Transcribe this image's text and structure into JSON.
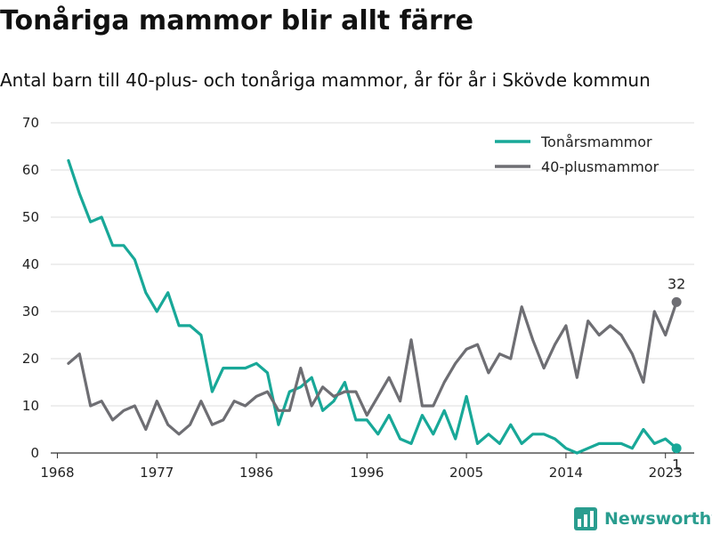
{
  "title": "Tonåriga mammor blir allt färre",
  "subtitle": "Antal barn till 40-plus- och tonåriga mammor, år för år i Skövde kommun",
  "brand": {
    "name": "Newsworthy"
  },
  "colors": {
    "teen": "#18a898",
    "plus40": "#6e6e73",
    "grid": "#dddddd",
    "axis": "#333333"
  },
  "chart_data": {
    "type": "line",
    "x_start": 1969,
    "x_end": 2024,
    "xticks": [
      1968,
      1977,
      1986,
      1996,
      2005,
      2014,
      2023
    ],
    "yticks": [
      0,
      10,
      20,
      30,
      40,
      50,
      60,
      70
    ],
    "ylim": [
      0,
      70
    ],
    "xlim": [
      1967.4,
      2025.6
    ],
    "grid": true,
    "legend_position": "top-right",
    "series": [
      {
        "name": "Tonårsmammor",
        "color": "#18a898",
        "values": [
          62,
          55,
          49,
          50,
          44,
          44,
          41,
          34,
          30,
          34,
          27,
          27,
          25,
          13,
          18,
          18,
          18,
          19,
          17,
          6,
          13,
          14,
          16,
          9,
          11,
          15,
          7,
          7,
          4,
          8,
          3,
          2,
          8,
          4,
          9,
          3,
          12,
          2,
          4,
          2,
          6,
          2,
          4,
          4,
          3,
          1,
          0,
          1,
          2,
          2,
          2,
          1,
          5,
          2,
          3,
          1
        ],
        "end_label": "1"
      },
      {
        "name": "40-plusmammor",
        "color": "#6e6e73",
        "values": [
          19,
          21,
          10,
          11,
          7,
          9,
          10,
          5,
          11,
          6,
          4,
          6,
          11,
          6,
          7,
          11,
          10,
          12,
          13,
          9,
          9,
          18,
          10,
          14,
          12,
          13,
          13,
          8,
          12,
          16,
          11,
          24,
          10,
          10,
          15,
          19,
          22,
          23,
          17,
          21,
          20,
          31,
          24,
          18,
          23,
          27,
          16,
          28,
          25,
          27,
          25,
          21,
          15,
          30,
          25,
          32
        ],
        "end_label": "32"
      }
    ]
  }
}
